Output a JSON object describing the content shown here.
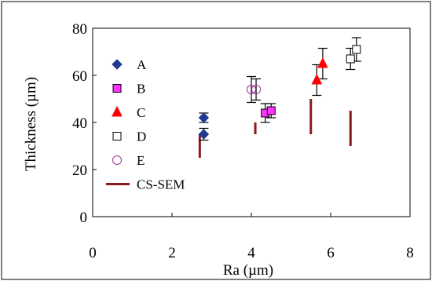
{
  "chart_data": {
    "type": "scatter",
    "xlabel": "Ra (µm)",
    "ylabel": "Thickness (µm)",
    "xlim": [
      0,
      8
    ],
    "ylim": [
      0,
      80
    ],
    "xticks": [
      "0",
      "2",
      "4",
      "6",
      "8"
    ],
    "yticks": [
      "0",
      "20",
      "40",
      "60",
      "80"
    ],
    "grid": false,
    "legend_position": "left",
    "series": [
      {
        "name": "A",
        "marker": "diamond",
        "color": "#1f3a93",
        "points": [
          {
            "x": 2.8,
            "y": 42,
            "err": 2
          },
          {
            "x": 2.8,
            "y": 35,
            "err": 2.5
          }
        ]
      },
      {
        "name": "B",
        "marker": "square",
        "color": "#ff33ff",
        "points": [
          {
            "x": 4.35,
            "y": 44,
            "err": 4
          },
          {
            "x": 4.5,
            "y": 45,
            "err": 3
          }
        ]
      },
      {
        "name": "C",
        "marker": "triangle",
        "color": "#ff0000",
        "points": [
          {
            "x": 5.65,
            "y": 58,
            "err": 6.5
          },
          {
            "x": 5.8,
            "y": 65,
            "err": 6.5
          }
        ]
      },
      {
        "name": "D",
        "marker": "open-square",
        "color": "#000000",
        "points": [
          {
            "x": 6.5,
            "y": 67,
            "err": 4.5
          },
          {
            "x": 6.65,
            "y": 71,
            "err": 5
          }
        ]
      },
      {
        "name": "E",
        "marker": "open-circle",
        "color": "#993399",
        "points": [
          {
            "x": 4.0,
            "y": 54,
            "err": 5.5
          },
          {
            "x": 4.12,
            "y": 54,
            "err": 4.5
          }
        ]
      }
    ],
    "cs_sem": {
      "name": "CS-SEM",
      "color": "#8b1a1a",
      "ranges": [
        {
          "x": 2.7,
          "y0": 25,
          "y1": 35
        },
        {
          "x": 4.1,
          "y0": 35,
          "y1": 40
        },
        {
          "x": 5.5,
          "y0": 35,
          "y1": 50
        },
        {
          "x": 6.5,
          "y0": 30,
          "y1": 45
        }
      ]
    }
  }
}
